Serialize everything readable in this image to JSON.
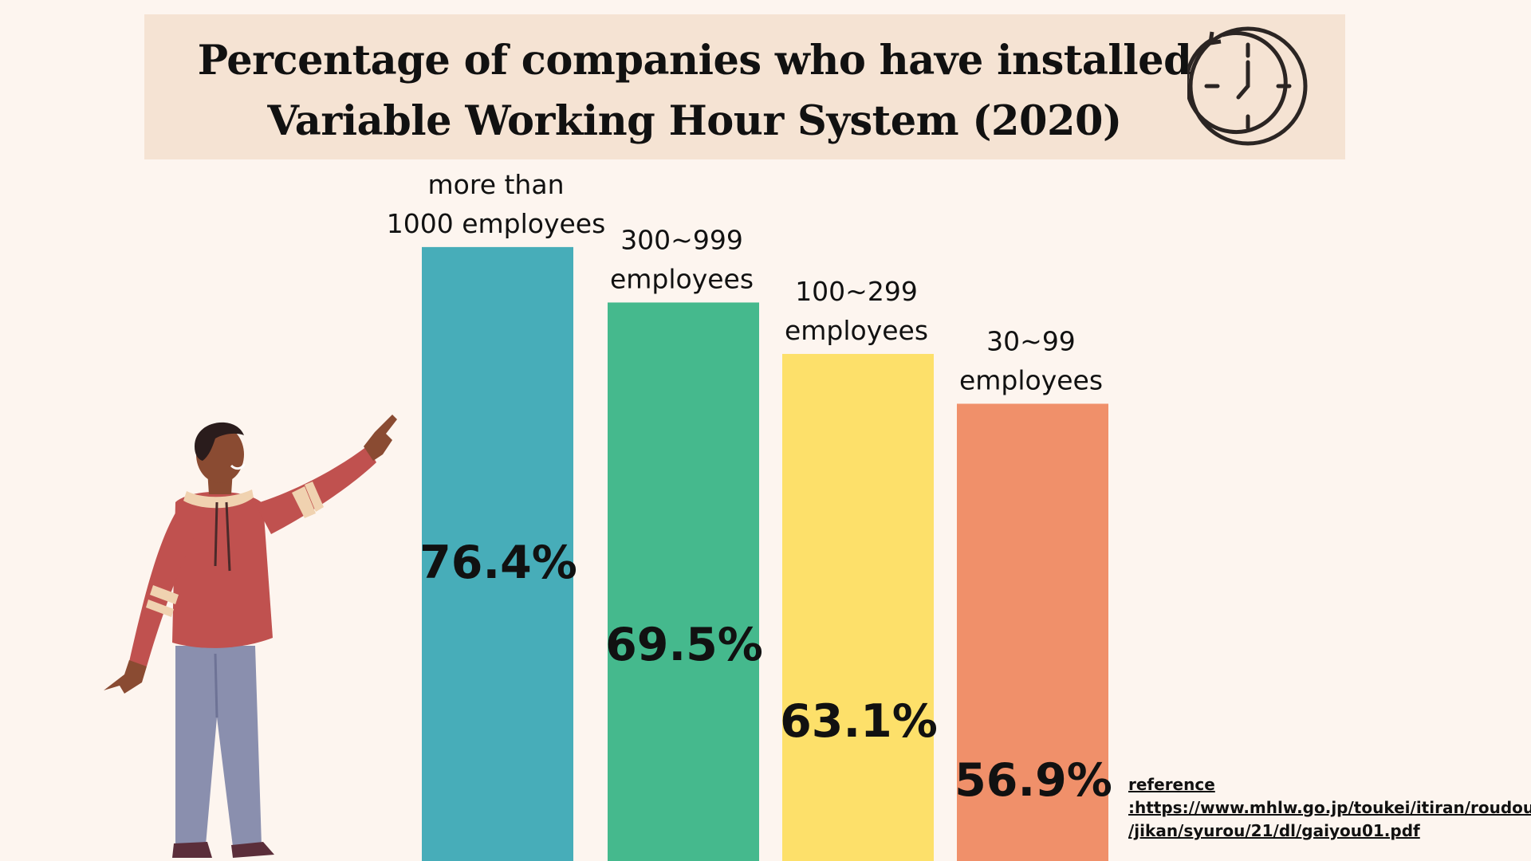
{
  "header": {
    "title_line1": "Percentage of  companies who have installed",
    "title_line2": "Variable Working Hour System (2020)"
  },
  "reference": {
    "line1": "reference",
    "line2": ":https://www.mhlw.go.jp/toukei/itiran/roudou",
    "line3": "/jikan/syurou/21/dl/gaiyou01.pdf"
  },
  "chart_data": {
    "type": "bar",
    "title": "Percentage of  companies who have installed Variable Working Hour System (2020)",
    "categories": [
      [
        "more than",
        "1000 employees"
      ],
      [
        "300~999",
        "employees"
      ],
      [
        "100~299",
        "employees"
      ],
      [
        "30~99",
        "employees"
      ]
    ],
    "values": [
      76.4,
      69.5,
      63.1,
      56.9
    ],
    "value_labels": [
      "76.4%",
      "69.5%",
      "63.1%",
      "56.9%"
    ],
    "colors": [
      "#47adb9",
      "#45b98d",
      "#fde06a",
      "#f0906a"
    ],
    "unit": "%",
    "grid": false,
    "legend": "none"
  },
  "colors": {
    "background": "#fdf5ef",
    "header_band": "#f5e3d3",
    "text": "#111111"
  },
  "icons": {
    "clock": "clock-icon",
    "person": "pointing-person-illustration"
  }
}
